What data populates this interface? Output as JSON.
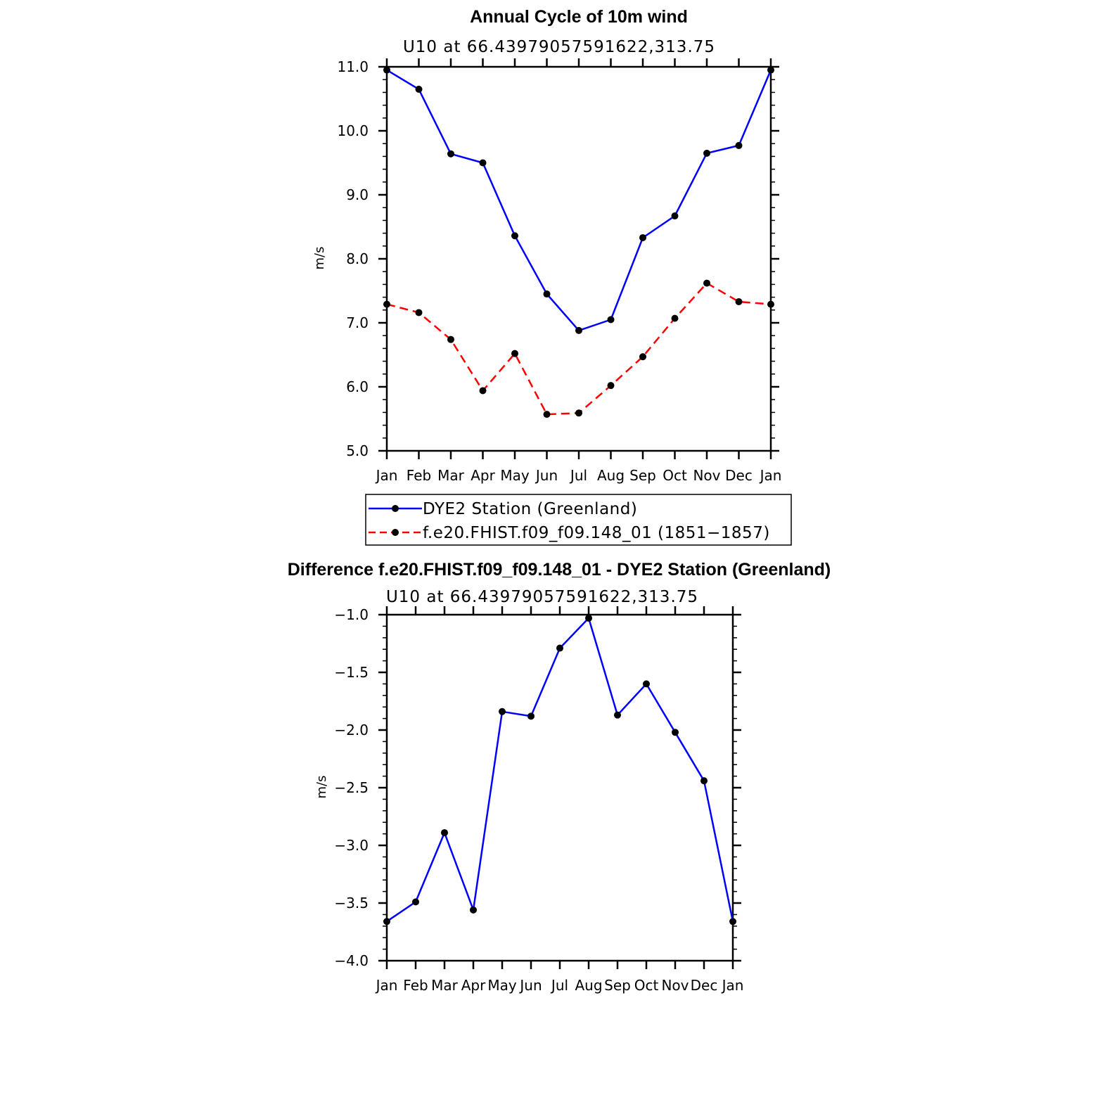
{
  "chart_data": [
    {
      "type": "line",
      "title": "Annual Cycle of 10m wind",
      "subtitle": "U10  at  66.43979057591622,313.75",
      "xlabel": "",
      "ylabel": "m/s",
      "categories": [
        "Jan",
        "Feb",
        "Mar",
        "Apr",
        "May",
        "Jun",
        "Jul",
        "Aug",
        "Sep",
        "Oct",
        "Nov",
        "Dec",
        "Jan"
      ],
      "ylim": [
        5.0,
        11.0
      ],
      "yticks": [
        "5.0",
        "6.0",
        "7.0",
        "8.0",
        "9.0",
        "10.0",
        "11.0"
      ],
      "series": [
        {
          "name": "DYE2 Station (Greenland)",
          "color": "#0000ff",
          "dashed": false,
          "values": [
            10.95,
            10.65,
            9.64,
            9.5,
            8.36,
            7.45,
            6.88,
            7.05,
            8.33,
            8.67,
            9.65,
            9.77,
            10.95
          ]
        },
        {
          "name": "f.e20.FHIST.f09_f09.148_01 (1851−1857)",
          "color": "#ff0000",
          "dashed": true,
          "values": [
            7.29,
            7.16,
            6.74,
            5.94,
            6.52,
            5.57,
            5.59,
            6.02,
            6.47,
            7.07,
            7.62,
            7.33,
            7.29
          ]
        }
      ],
      "legend_position": "below"
    },
    {
      "type": "line",
      "title": "Difference f.e20.FHIST.f09_f09.148_01 - DYE2 Station (Greenland)",
      "subtitle": "U10  at  66.43979057591622,313.75",
      "xlabel": "",
      "ylabel": "m/s",
      "categories": [
        "Jan",
        "Feb",
        "Mar",
        "Apr",
        "May",
        "Jun",
        "Jul",
        "Aug",
        "Sep",
        "Oct",
        "Nov",
        "Dec",
        "Jan"
      ],
      "ylim": [
        -4.0,
        -1.0
      ],
      "yticks": [
        "−4.0",
        "−3.5",
        "−3.0",
        "−2.5",
        "−2.0",
        "−1.5",
        "−1.0"
      ],
      "series": [
        {
          "name": "Difference",
          "color": "#0000ff",
          "dashed": false,
          "values": [
            -3.66,
            -3.49,
            -2.89,
            -3.56,
            -1.84,
            -1.88,
            -1.29,
            -1.03,
            -1.87,
            -1.6,
            -2.02,
            -2.44,
            -3.66
          ]
        }
      ]
    }
  ]
}
